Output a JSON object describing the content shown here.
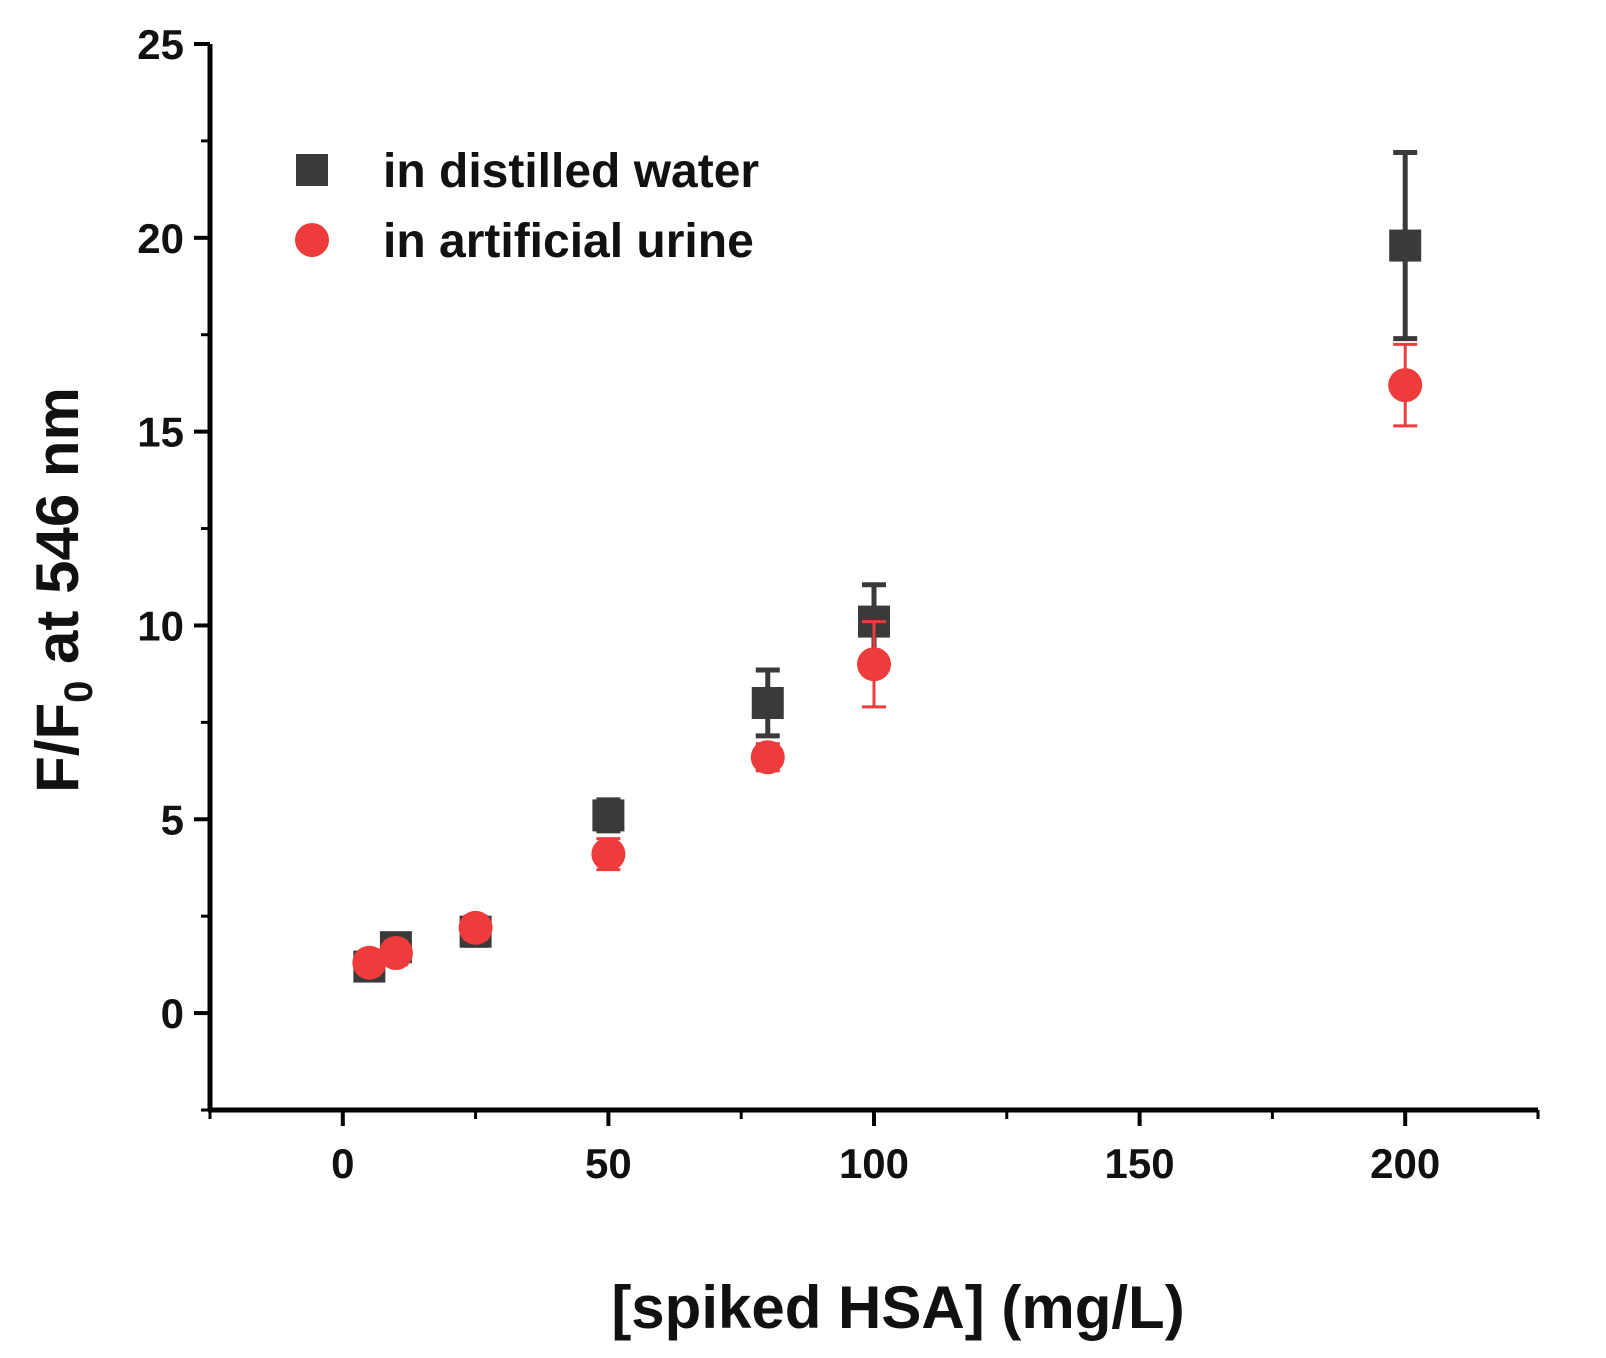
{
  "chart_data": {
    "type": "scatter",
    "title": "",
    "xlabel": "[spiked HSA] (mg/L)",
    "ylabel_main": "F/F",
    "ylabel_sub": "0",
    "ylabel_rest": " at 546 nm",
    "xlim": [
      -25,
      225
    ],
    "ylim": [
      -2.5,
      25
    ],
    "xticks": [
      0,
      50,
      100,
      150,
      200
    ],
    "yticks": [
      0,
      5,
      10,
      15,
      20,
      25
    ],
    "legend_position": "top-left",
    "series": [
      {
        "name": "in distilled water",
        "marker": "square",
        "color": "#3a3a3a",
        "x": [
          5,
          10,
          25,
          50,
          80,
          100,
          200
        ],
        "y": [
          1.2,
          1.7,
          2.1,
          5.1,
          8.0,
          10.1,
          19.8
        ],
        "yerr": [
          0.3,
          0.3,
          0.35,
          0.4,
          0.85,
          0.95,
          2.4
        ]
      },
      {
        "name": "in artificial urine",
        "marker": "circle",
        "color": "#ee3b3b",
        "x": [
          5,
          10,
          25,
          50,
          80,
          100,
          200
        ],
        "y": [
          1.3,
          1.55,
          2.2,
          4.1,
          6.6,
          9.0,
          16.2
        ],
        "yerr": [
          0.25,
          0.3,
          0.3,
          0.4,
          0.35,
          1.1,
          1.05
        ]
      }
    ]
  }
}
